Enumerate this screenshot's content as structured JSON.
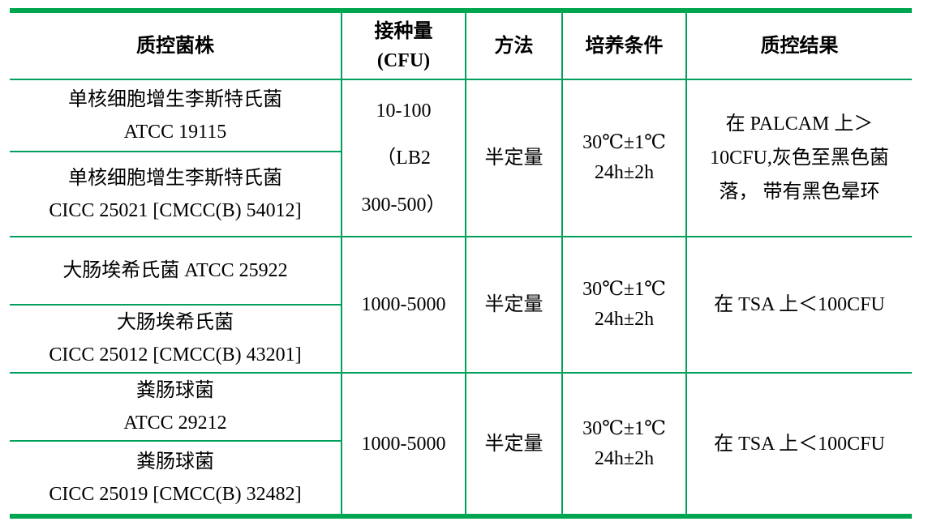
{
  "page": {
    "background": "#ffffff"
  },
  "table": {
    "border_color_thick": "#00A64F",
    "border_color_thin": "#00A05C",
    "header": {
      "strain": "质控菌株",
      "inoculum_line1": "接种量",
      "inoculum_line2": "(CFU)",
      "method": "方法",
      "condition": "培养条件",
      "result": "质控结果"
    },
    "groups": [
      {
        "strain_a": {
          "line1": "单核细胞增生李斯特氏菌",
          "line2": "ATCC 19115"
        },
        "strain_b": {
          "line1": "单核细胞增生李斯特氏菌",
          "line2": "CICC 25021 [CMCC(B) 54012]"
        },
        "inoculum": {
          "line1": "10-100",
          "line2": "（LB2",
          "line3": "300-500）"
        },
        "method": "半定量",
        "condition": {
          "line1": "30℃±1℃",
          "line2": "24h±2h"
        },
        "result": {
          "line1": "在 PALCAM 上＞",
          "line2": "10CFU,灰色至黑色菌",
          "line3": "落， 带有黑色晕环"
        }
      },
      {
        "strain_a": {
          "line1": "大肠埃希氏菌 ATCC 25922"
        },
        "strain_b": {
          "line1": "大肠埃希氏菌",
          "line2": "CICC 25012 [CMCC(B) 43201]"
        },
        "inoculum": {
          "line1": "1000-5000"
        },
        "method": "半定量",
        "condition": {
          "line1": "30℃±1℃",
          "line2": "24h±2h"
        },
        "result": {
          "line1": "在 TSA 上＜100CFU"
        }
      },
      {
        "strain_a": {
          "line1": "粪肠球菌",
          "line2": "ATCC 29212"
        },
        "strain_b": {
          "line1": "粪肠球菌",
          "line2": "CICC 25019 [CMCC(B) 32482]"
        },
        "inoculum": {
          "line1": "1000-5000"
        },
        "method": "半定量",
        "condition": {
          "line1": "30℃±1℃",
          "line2": "24h±2h"
        },
        "result": {
          "line1": "在 TSA 上＜100CFU"
        }
      }
    ]
  }
}
